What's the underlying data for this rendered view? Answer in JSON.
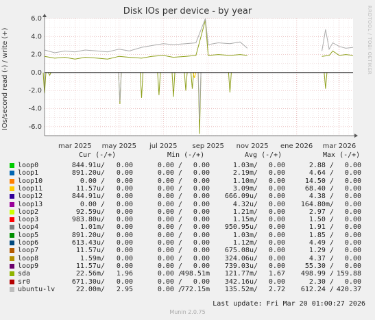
{
  "chart_data": {
    "type": "line",
    "title": "Disk IOs per device - by year",
    "ylabel": "IOs/second read (-) / write (+)",
    "ylim": [
      -7,
      6
    ],
    "yticks": [
      "6.0",
      "4.0",
      "2.0",
      "0.0",
      "-2.0",
      "-4.0",
      "-6.0"
    ],
    "ytick_values": [
      6,
      4,
      2,
      0,
      -2,
      -4,
      -6
    ],
    "xtick_labels": [
      "mar 2025",
      "may 2025",
      "jul 2025",
      "sep 2025",
      "nov 2025",
      "ene 2026",
      "mar 2026"
    ],
    "xtick_dates": [
      "2025-03-01",
      "2025-05-01",
      "2025-07-01",
      "2025-09-01",
      "2025-11-01",
      "2026-01-01",
      "2026-03-01"
    ],
    "x_range": [
      "2025-01-18",
      "2026-03-20"
    ],
    "grid": true,
    "series": [
      {
        "name": "sda",
        "color": "#8ea01a",
        "write_points": [
          [
            "2025-01-18",
            1.8
          ],
          [
            "2025-02-01",
            1.6
          ],
          [
            "2025-02-15",
            1.7
          ],
          [
            "2025-03-01",
            1.5
          ],
          [
            "2025-03-15",
            1.7
          ],
          [
            "2025-04-01",
            1.6
          ],
          [
            "2025-04-15",
            1.5
          ],
          [
            "2025-05-01",
            1.8
          ],
          [
            "2025-05-15",
            1.7
          ],
          [
            "2025-06-01",
            1.6
          ],
          [
            "2025-06-15",
            1.8
          ],
          [
            "2025-07-01",
            1.9
          ],
          [
            "2025-07-15",
            1.7
          ],
          [
            "2025-08-01",
            1.8
          ],
          [
            "2025-08-15",
            1.9
          ],
          [
            "2025-08-28",
            5.8
          ],
          [
            "2025-09-01",
            1.9
          ],
          [
            "2025-09-15",
            2.0
          ],
          [
            "2025-10-01",
            1.9
          ],
          [
            "2025-10-15",
            2.0
          ],
          [
            "2025-10-25",
            1.9
          ],
          [
            "2026-02-05",
            1.8
          ],
          [
            "2026-02-15",
            1.9
          ],
          [
            "2026-02-20",
            2.4
          ],
          [
            "2026-03-01",
            1.9
          ],
          [
            "2026-03-10",
            2.0
          ],
          [
            "2026-03-20",
            1.9
          ]
        ],
        "read_points": [
          [
            "2025-01-18",
            -2.3
          ],
          [
            "2025-01-25",
            -0.3
          ],
          [
            "2025-05-02",
            -3.5
          ],
          [
            "2025-06-01",
            -2.8
          ],
          [
            "2025-06-25",
            -2.5
          ],
          [
            "2025-07-15",
            -2.7
          ],
          [
            "2025-08-01",
            -2.0
          ],
          [
            "2025-08-10",
            -1.8
          ],
          [
            "2025-08-20",
            -6.8
          ],
          [
            "2025-10-01",
            -2.2
          ],
          [
            "2026-02-10",
            -1.8
          ]
        ]
      },
      {
        "name": "ubuntu-lv",
        "color": "#aaaaaa",
        "write_points": [
          [
            "2025-01-18",
            2.5
          ],
          [
            "2025-02-01",
            2.2
          ],
          [
            "2025-02-15",
            2.4
          ],
          [
            "2025-03-01",
            2.3
          ],
          [
            "2025-03-15",
            2.5
          ],
          [
            "2025-04-01",
            2.4
          ],
          [
            "2025-04-15",
            2.3
          ],
          [
            "2025-05-01",
            2.6
          ],
          [
            "2025-05-15",
            2.4
          ],
          [
            "2025-06-01",
            2.8
          ],
          [
            "2025-06-15",
            3.0
          ],
          [
            "2025-07-01",
            3.2
          ],
          [
            "2025-07-15",
            3.1
          ],
          [
            "2025-08-01",
            3.2
          ],
          [
            "2025-08-15",
            3.3
          ],
          [
            "2025-08-28",
            6.0
          ],
          [
            "2025-09-01",
            3.1
          ],
          [
            "2025-09-15",
            3.3
          ],
          [
            "2025-10-01",
            3.2
          ],
          [
            "2025-10-15",
            3.4
          ],
          [
            "2025-10-25",
            2.7
          ],
          [
            "2026-02-05",
            2.4
          ],
          [
            "2026-02-10",
            4.8
          ],
          [
            "2026-02-15",
            2.6
          ],
          [
            "2026-02-20",
            3.3
          ],
          [
            "2026-03-01",
            2.9
          ],
          [
            "2026-03-10",
            2.7
          ],
          [
            "2026-03-20",
            2.8
          ]
        ],
        "read_points": [
          [
            "2025-05-02",
            -3.2
          ],
          [
            "2025-08-20",
            -5.2
          ]
        ]
      },
      {
        "name": "loop11",
        "color": "#ffcc00",
        "read_points": [
          [
            "2025-08-13",
            -0.6
          ]
        ]
      }
    ]
  },
  "legend": {
    "header": {
      "cur": "Cur (-/+)",
      "min": "Min (-/+)",
      "avg": "Avg (-/+)",
      "max": "Max (-/+)"
    },
    "rows": [
      {
        "name": "loop0",
        "color": "#00cc00",
        "cur_r": "844.91u/",
        "cur_w": "0.00",
        "min_r": "0.00 /",
        "min_w": "0.00",
        "avg_r": "1.03m/",
        "avg_w": "0.00",
        "max_r": "2.88 /",
        "max_w": "0.00"
      },
      {
        "name": "loop1",
        "color": "#0066b3",
        "cur_r": "891.20u/",
        "cur_w": "0.00",
        "min_r": "0.00 /",
        "min_w": "0.00",
        "avg_r": "2.19m/",
        "avg_w": "0.00",
        "max_r": "4.64 /",
        "max_w": "0.00"
      },
      {
        "name": "loop10",
        "color": "#ff8000",
        "cur_r": "0.00 /",
        "cur_w": "0.00",
        "min_r": "0.00 /",
        "min_w": "0.00",
        "avg_r": "1.10m/",
        "avg_w": "0.00",
        "max_r": "14.50 /",
        "max_w": "0.00"
      },
      {
        "name": "loop11",
        "color": "#ffcc00",
        "cur_r": "11.57u/",
        "cur_w": "0.00",
        "min_r": "0.00 /",
        "min_w": "0.00",
        "avg_r": "3.09m/",
        "avg_w": "0.00",
        "max_r": "68.40 /",
        "max_w": "0.00"
      },
      {
        "name": "loop12",
        "color": "#330099",
        "cur_r": "844.91u/",
        "cur_w": "0.00",
        "min_r": "0.00 /",
        "min_w": "0.00",
        "avg_r": "666.09u/",
        "avg_w": "0.00",
        "max_r": "4.38 /",
        "max_w": "0.00"
      },
      {
        "name": "loop13",
        "color": "#990099",
        "cur_r": "0.00 /",
        "cur_w": "0.00",
        "min_r": "0.00 /",
        "min_w": "0.00",
        "avg_r": "4.32u/",
        "avg_w": "0.00",
        "max_r": "164.80m/",
        "max_w": "0.00"
      },
      {
        "name": "loop2",
        "color": "#ccff00",
        "cur_r": "92.59u/",
        "cur_w": "0.00",
        "min_r": "0.00 /",
        "min_w": "0.00",
        "avg_r": "1.21m/",
        "avg_w": "0.00",
        "max_r": "2.97 /",
        "max_w": "0.00"
      },
      {
        "name": "loop3",
        "color": "#ff0000",
        "cur_r": "983.80u/",
        "cur_w": "0.00",
        "min_r": "0.00 /",
        "min_w": "0.00",
        "avg_r": "1.15m/",
        "avg_w": "0.00",
        "max_r": "1.50 /",
        "max_w": "0.00"
      },
      {
        "name": "loop4",
        "color": "#808080",
        "cur_r": "1.01m/",
        "cur_w": "0.00",
        "min_r": "0.00 /",
        "min_w": "0.00",
        "avg_r": "950.95u/",
        "avg_w": "0.00",
        "max_r": "1.91 /",
        "max_w": "0.00"
      },
      {
        "name": "loop5",
        "color": "#008f00",
        "cur_r": "891.20u/",
        "cur_w": "0.00",
        "min_r": "0.00 /",
        "min_w": "0.00",
        "avg_r": "1.03m/",
        "avg_w": "0.00",
        "max_r": "1.85 /",
        "max_w": "0.00"
      },
      {
        "name": "loop6",
        "color": "#00487d",
        "cur_r": "613.43u/",
        "cur_w": "0.00",
        "min_r": "0.00 /",
        "min_w": "0.00",
        "avg_r": "1.12m/",
        "avg_w": "0.00",
        "max_r": "4.49 /",
        "max_w": "0.00"
      },
      {
        "name": "loop7",
        "color": "#b35a00",
        "cur_r": "11.57u/",
        "cur_w": "0.00",
        "min_r": "0.00 /",
        "min_w": "0.00",
        "avg_r": "675.08u/",
        "avg_w": "0.00",
        "max_r": "1.29 /",
        "max_w": "0.00"
      },
      {
        "name": "loop8",
        "color": "#b38f00",
        "cur_r": "1.59m/",
        "cur_w": "0.00",
        "min_r": "0.00 /",
        "min_w": "0.00",
        "avg_r": "324.06u/",
        "avg_w": "0.00",
        "max_r": "4.37 /",
        "max_w": "0.00"
      },
      {
        "name": "loop9",
        "color": "#6b006b",
        "cur_r": "11.57u/",
        "cur_w": "0.00",
        "min_r": "0.00 /",
        "min_w": "0.00",
        "avg_r": "739.03u/",
        "avg_w": "0.00",
        "max_r": "55.30 /",
        "max_w": "0.00"
      },
      {
        "name": "sda",
        "color": "#8fb300",
        "cur_r": "22.56m/",
        "cur_w": "1.96",
        "min_r": "0.00 /",
        "min_w": "498.51m",
        "avg_r": "121.77m/",
        "avg_w": "1.67",
        "max_r": "498.99 /",
        "max_w": "159.88"
      },
      {
        "name": "sr0",
        "color": "#b30000",
        "cur_r": "671.30u/",
        "cur_w": "0.00",
        "min_r": "0.00 /",
        "min_w": "0.00",
        "avg_r": "342.16u/",
        "avg_w": "0.00",
        "max_r": "2.30 /",
        "max_w": "0.00"
      },
      {
        "name": "ubuntu-lv",
        "color": "#bebebe",
        "cur_r": "22.00m/",
        "cur_w": "2.95",
        "min_r": "0.00 /",
        "min_w": "772.15m",
        "avg_r": "135.52m/",
        "avg_w": "2.72",
        "max_r": "612.24 /",
        "max_w": "420.37"
      }
    ]
  },
  "last_update": "Last update: Fri Mar 20 01:00:27 2026",
  "side_text": "RRDTOOL / TOBI OETIKER",
  "footer": "Munin 2.0.75"
}
